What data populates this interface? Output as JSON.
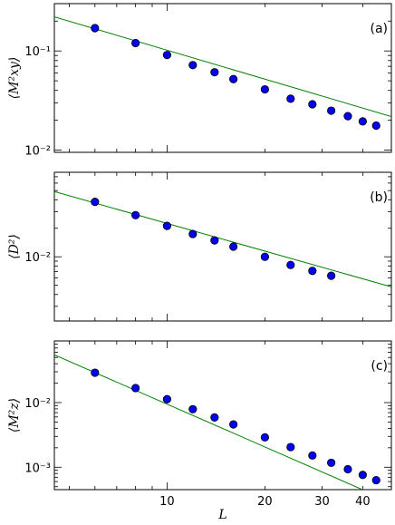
{
  "chart_data": [
    {
      "type": "scatter",
      "panel_label": "(a)",
      "ylabel": "⟨M²xy⟩",
      "xscale": "log",
      "yscale": "log",
      "xlim": [
        4.5,
        49
      ],
      "ylim": [
        0.0095,
        0.3
      ],
      "yticks": [
        {
          "value": 0.1,
          "label": "10⁻¹"
        },
        {
          "value": 0.01,
          "label": "10⁻²"
        }
      ],
      "grid": false,
      "series": [
        {
          "x": [
            6,
            8,
            10,
            12,
            14,
            16,
            20,
            24,
            28,
            32,
            36,
            40,
            44
          ],
          "y": [
            0.17,
            0.12,
            0.091,
            0.072,
            0.061,
            0.052,
            0.041,
            0.033,
            0.029,
            0.025,
            0.022,
            0.0195,
            0.0177
          ]
        }
      ],
      "fit": {
        "slope": -0.97,
        "amplitude": 0.95
      }
    },
    {
      "type": "scatter",
      "panel_label": "(b)",
      "ylabel": "⟨D²⟩",
      "xscale": "log",
      "yscale": "log",
      "xlim": [
        4.5,
        49
      ],
      "ylim": [
        0.0021,
        0.078
      ],
      "yticks": [
        {
          "value": 0.01,
          "label": "10⁻²"
        }
      ],
      "grid": false,
      "series": [
        {
          "x": [
            6,
            8,
            10,
            12,
            14,
            16,
            20,
            24,
            28,
            32
          ],
          "y": [
            0.038,
            0.0275,
            0.0212,
            0.0174,
            0.0149,
            0.0128,
            0.01,
            0.0082,
            0.0071,
            0.0063
          ]
        }
      ],
      "fit": {
        "slope": -0.97,
        "amplitude": 0.21
      }
    },
    {
      "type": "scatter",
      "panel_label": "(c)",
      "ylabel": "⟨M²z⟩",
      "xscale": "log",
      "yscale": "log",
      "xlim": [
        4.5,
        49
      ],
      "ylim": [
        0.00045,
        0.09
      ],
      "yticks": [
        {
          "value": 0.01,
          "label": "10⁻²"
        },
        {
          "value": 0.001,
          "label": "10⁻³"
        }
      ],
      "grid": false,
      "series": [
        {
          "x": [
            6,
            8,
            10,
            12,
            14,
            16,
            20,
            24,
            28,
            32,
            36,
            40,
            44
          ],
          "y": [
            0.029,
            0.0168,
            0.0113,
            0.0079,
            0.0059,
            0.0046,
            0.0029,
            0.00205,
            0.00152,
            0.00117,
            0.00093,
            0.00076,
            0.00063
          ]
        }
      ],
      "fit": {
        "slope": -2.2,
        "amplitude": 1.5
      }
    }
  ],
  "xaxis": {
    "label": "L",
    "ticks": [
      {
        "value": 10,
        "label": "10"
      },
      {
        "value": 20,
        "label": "20"
      },
      {
        "value": 30,
        "label": "30"
      },
      {
        "value": 40,
        "label": "40"
      }
    ]
  },
  "colors": {
    "points": "#0000ee",
    "point_edge": "#000000",
    "fit_line": "#008000"
  }
}
